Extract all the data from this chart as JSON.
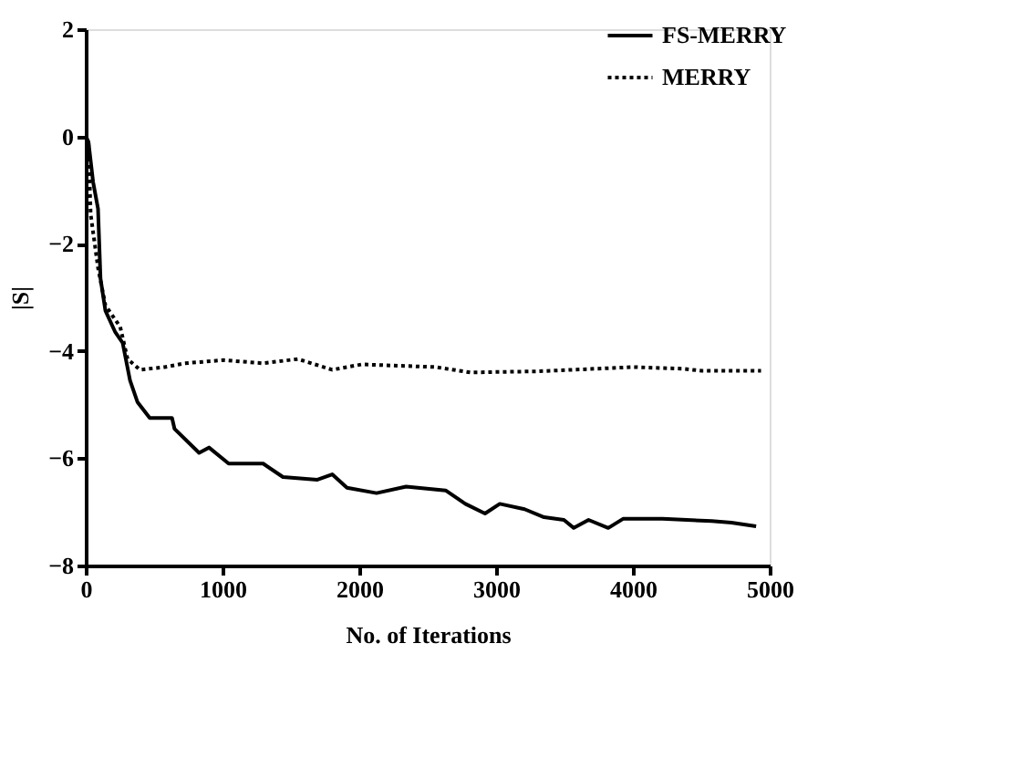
{
  "chart_data": {
    "type": "line",
    "xlabel": "No. of Iterations",
    "ylabel": "|S|",
    "xlim": [
      0,
      5000
    ],
    "xticks": [
      0,
      1000,
      2000,
      3000,
      4000,
      5000
    ],
    "ylim": [
      -8,
      2
    ],
    "yticks": [
      -8,
      -6,
      -4,
      -2,
      0,
      2
    ],
    "grid": false,
    "legend": "top right",
    "series": [
      {
        "name": "FS-MERRY",
        "color": "#000000",
        "line_style": "solid",
        "x": [
          0,
          20,
          54,
          90,
          108,
          144,
          216,
          270,
          324,
          378,
          468,
          631,
          649,
          829,
          901,
          1045,
          1297,
          1442,
          1694,
          1802,
          1910,
          2126,
          2342,
          2631,
          2775,
          2919,
          3027,
          3208,
          3351,
          3496,
          3568,
          3676,
          3820,
          3928,
          4216,
          4577,
          4721,
          4901
        ],
        "values": [
          0,
          -0.1,
          -0.85,
          -1.35,
          -2.65,
          -3.25,
          -3.65,
          -3.85,
          -4.55,
          -4.95,
          -5.25,
          -5.25,
          -5.45,
          -5.9,
          -5.8,
          -6.1,
          -6.1,
          -6.35,
          -6.4,
          -6.3,
          -6.55,
          -6.65,
          -6.53,
          -6.6,
          -6.85,
          -7.03,
          -6.85,
          -6.95,
          -7.1,
          -7.15,
          -7.3,
          -7.15,
          -7.3,
          -7.13,
          -7.13,
          -7.17,
          -7.2,
          -7.27
        ]
      },
      {
        "name": "MERRY",
        "color": "#000000",
        "line_style": "dotted",
        "x": [
          0,
          20,
          36,
          90,
          144,
          252,
          306,
          396,
          577,
          721,
          1009,
          1297,
          1550,
          1802,
          2018,
          2559,
          2811,
          3300,
          4000,
          4361,
          4505,
          4937
        ],
        "values": [
          0,
          -0.1,
          -1.45,
          -2.45,
          -3.15,
          -3.55,
          -4.15,
          -4.35,
          -4.3,
          -4.23,
          -4.17,
          -4.23,
          -4.15,
          -4.35,
          -4.25,
          -4.3,
          -4.4,
          -4.38,
          -4.3,
          -4.33,
          -4.37,
          -4.37
        ]
      }
    ]
  }
}
